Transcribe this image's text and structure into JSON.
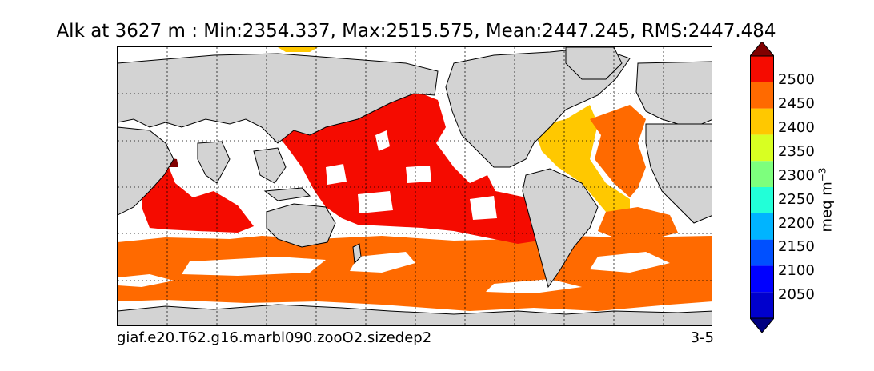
{
  "title": "Alk at 3627 m : Min:2354.337, Max:2515.575, Mean:2447.245, RMS:2447.484",
  "footer": {
    "case_name": "giaf.e20.T62.g16.marbl090.zooO2.sizedep2",
    "period": "3-5"
  },
  "colorbar": {
    "label_main": "meq m",
    "label_exp": "−3",
    "ticks": [
      "2050",
      "2100",
      "2150",
      "2200",
      "2250",
      "2300",
      "2350",
      "2400",
      "2450",
      "2500"
    ],
    "levels": [
      {
        "range": "<2000",
        "color": "#000080"
      },
      {
        "range": "2000-2050",
        "color": "#0000cd"
      },
      {
        "range": "2050-2100",
        "color": "#0000ff"
      },
      {
        "range": "2100-2150",
        "color": "#0050ff"
      },
      {
        "range": "2150-2200",
        "color": "#00b4ff"
      },
      {
        "range": "2200-2250",
        "color": "#22ffd8"
      },
      {
        "range": "2250-2300",
        "color": "#7dff7d"
      },
      {
        "range": "2300-2350",
        "color": "#d8ff22"
      },
      {
        "range": "2350-2400",
        "color": "#ffc800"
      },
      {
        "range": "2400-2450",
        "color": "#ff6a00"
      },
      {
        "range": "2450-2500",
        "color": "#f50b00"
      },
      {
        "range": ">2500",
        "color": "#800000"
      }
    ]
  },
  "map": {
    "land_color": "#d3d3d3",
    "no_data_color": "#ffffff"
  }
}
